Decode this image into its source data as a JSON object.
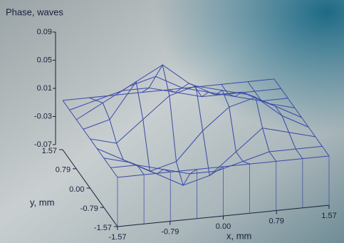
{
  "chart_data": {
    "type": "surface",
    "zlabel": "Phase, waves",
    "xlabel": "x, mm",
    "ylabel": "y, mm",
    "color": "#3a4aa8",
    "x": [
      -1.57,
      -1.1775,
      -0.785,
      -0.3925,
      0,
      0.3925,
      0.785,
      1.1775,
      1.57
    ],
    "y": [
      -1.57,
      -1.1775,
      -0.785,
      -0.3925,
      0,
      0.3925,
      0.785,
      1.1775,
      1.57
    ],
    "z": [
      [
        0,
        0,
        0,
        0,
        0,
        0,
        0,
        0,
        0
      ],
      [
        0,
        0,
        -0.01,
        -0.02,
        -0.02,
        -0.01,
        0,
        0,
        0
      ],
      [
        0,
        -0.01,
        -0.03,
        -0.05,
        -0.04,
        -0.01,
        0.02,
        0.01,
        0
      ],
      [
        0,
        -0.02,
        -0.04,
        -0.03,
        0.01,
        0.04,
        0.05,
        0.02,
        0
      ],
      [
        0,
        -0.01,
        0.02,
        0.05,
        0.06,
        0.05,
        0.04,
        0.02,
        0
      ],
      [
        0,
        0.01,
        0.06,
        0.08,
        0.05,
        0.03,
        0.03,
        0.01,
        0
      ],
      [
        0,
        0.02,
        0.04,
        0.05,
        0.03,
        0.02,
        0.01,
        0,
        0
      ],
      [
        0,
        0.01,
        0.02,
        0.02,
        0.01,
        0,
        0,
        0,
        0
      ],
      [
        0,
        0,
        0,
        0,
        0,
        0,
        0,
        0,
        0
      ]
    ],
    "xlim": [
      -1.57,
      1.57
    ],
    "xticks": [
      -1.57,
      -0.79,
      {
        "value": 0,
        "label": "0.00"
      },
      0.79,
      1.57
    ],
    "ylim": [
      -1.57,
      1.57
    ],
    "yticks": [
      -1.57,
      -0.79,
      {
        "value": 0,
        "label": "0.00"
      },
      0.79,
      1.57
    ],
    "zlim": [
      -0.07,
      0.09
    ],
    "zticks": [
      -0.07,
      -0.03,
      0.01,
      0.05,
      0.09
    ]
  }
}
